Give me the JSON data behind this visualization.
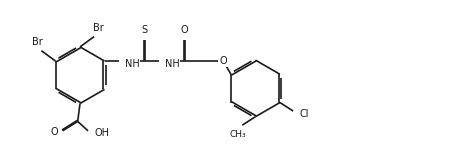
{
  "background": "#ffffff",
  "line_color": "#1a1a1a",
  "line_width": 1.2,
  "font_size": 7.0,
  "figsize": [
    4.76,
    1.57
  ],
  "dpi": 100,
  "xlim": [
    0,
    10.0
  ],
  "ylim": [
    0,
    3.3
  ]
}
